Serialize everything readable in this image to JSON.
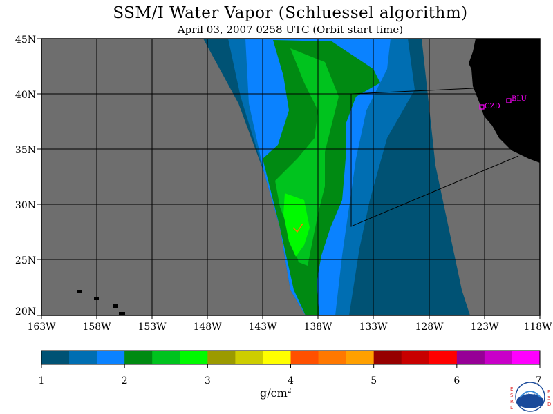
{
  "header": {
    "title": "SSM/I Water Vapor (Schluessel algorithm)",
    "subtitle": "April 03, 2007  0258 UTC  (Orbit start time)"
  },
  "map": {
    "lat_ticks": [
      "45N",
      "40N",
      "35N",
      "30N",
      "25N",
      "20N"
    ],
    "lon_ticks": [
      "163W",
      "158W",
      "153W",
      "148W",
      "143W",
      "138W",
      "133W",
      "128W",
      "123W",
      "118W"
    ],
    "stations": [
      {
        "label": "CZD",
        "color": "#ff00ff"
      },
      {
        "label": "BLU",
        "color": "#ff00ff"
      }
    ],
    "colors": {
      "no_data": "#6e6e6e",
      "land": "#000000",
      "grid": "#000000"
    }
  },
  "colorbar": {
    "colors": [
      "#005274",
      "#006eb2",
      "#0a82ff",
      "#008a12",
      "#00c31e",
      "#00fa00",
      "#9b9a00",
      "#cdcd00",
      "#ffff00",
      "#ff5000",
      "#ff7800",
      "#ffa000",
      "#960000",
      "#c80000",
      "#ff0000",
      "#960096",
      "#c800c8",
      "#ff00ff"
    ],
    "tick_labels": [
      "1",
      "2",
      "3",
      "4",
      "5",
      "6",
      "7"
    ],
    "unit": "g/cm",
    "unit_sup": "2"
  },
  "logo": {
    "left_text": "ESRL",
    "right_text": "PSD",
    "center_text": "NOAA"
  }
}
